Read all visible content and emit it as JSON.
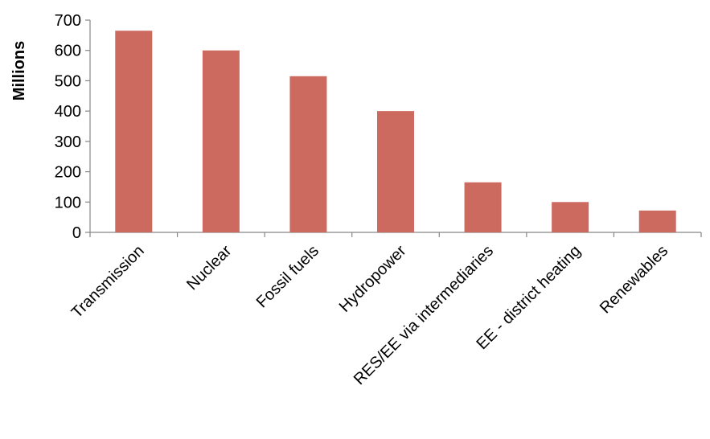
{
  "chart_data": {
    "type": "bar",
    "categories": [
      "Transmission",
      "Nuclear",
      "Fossil fuels",
      "Hydropower",
      "RES/EE via intermediaries",
      "EE - district heating",
      "Renewables"
    ],
    "values": [
      665,
      600,
      515,
      400,
      165,
      100,
      72
    ],
    "ylabel": "Millions",
    "ylim": [
      0,
      700
    ],
    "yticks": [
      0,
      100,
      200,
      300,
      400,
      500,
      600,
      700
    ],
    "grid": false,
    "legend": "none",
    "bar_color": "#CD6A60"
  }
}
